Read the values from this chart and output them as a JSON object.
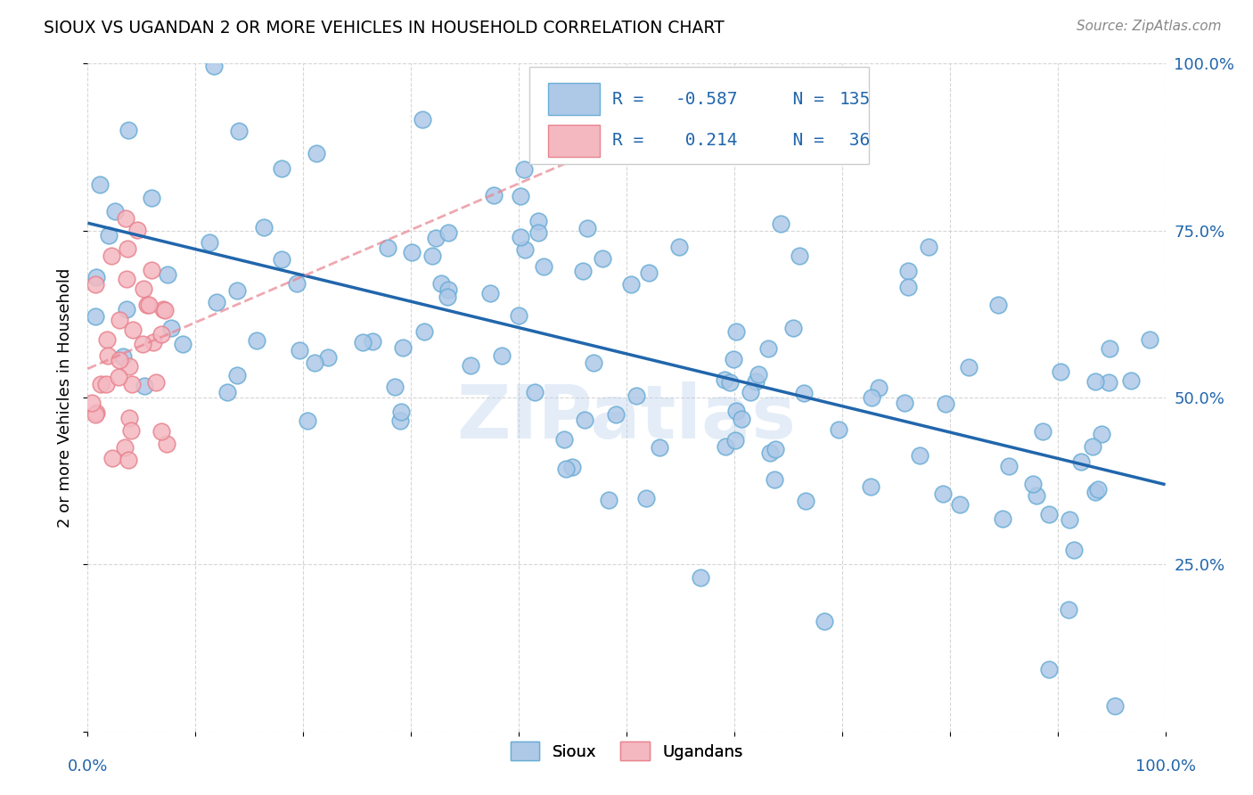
{
  "title": "SIOUX VS UGANDAN 2 OR MORE VEHICLES IN HOUSEHOLD CORRELATION CHART",
  "source": "Source: ZipAtlas.com",
  "ylabel": "2 or more Vehicles in Household",
  "sioux_color": "#aec8e8",
  "sioux_edge_color": "#6baed6",
  "ugandan_color": "#f4b8c1",
  "ugandan_edge_color": "#e8848f",
  "trend_sioux_color": "#2166ac",
  "trend_ugandan_color": "#e8848f",
  "sioux_R": -0.587,
  "sioux_N": 135,
  "ugandan_R": 0.214,
  "ugandan_N": 36,
  "watermark": "ZIPatlas",
  "tick_color": "#2166ac",
  "legend_text_color": "#2166ac",
  "xlim": [
    0.0,
    1.0
  ],
  "ylim": [
    0.0,
    1.0
  ],
  "ytick_vals": [
    0.0,
    0.25,
    0.5,
    0.75,
    1.0
  ],
  "ytick_labels": [
    "",
    "25.0%",
    "50.0%",
    "75.0%",
    "100.0%"
  ],
  "xtick_vals": [
    0.0,
    0.1,
    0.2,
    0.3,
    0.4,
    0.5,
    0.6,
    0.7,
    0.8,
    0.9,
    1.0
  ],
  "xtick_labels": [
    "0.0%",
    "",
    "",
    "",
    "",
    "",
    "",
    "",
    "",
    "",
    "100.0%"
  ],
  "sioux_seed": 12,
  "ugandan_seed": 7
}
